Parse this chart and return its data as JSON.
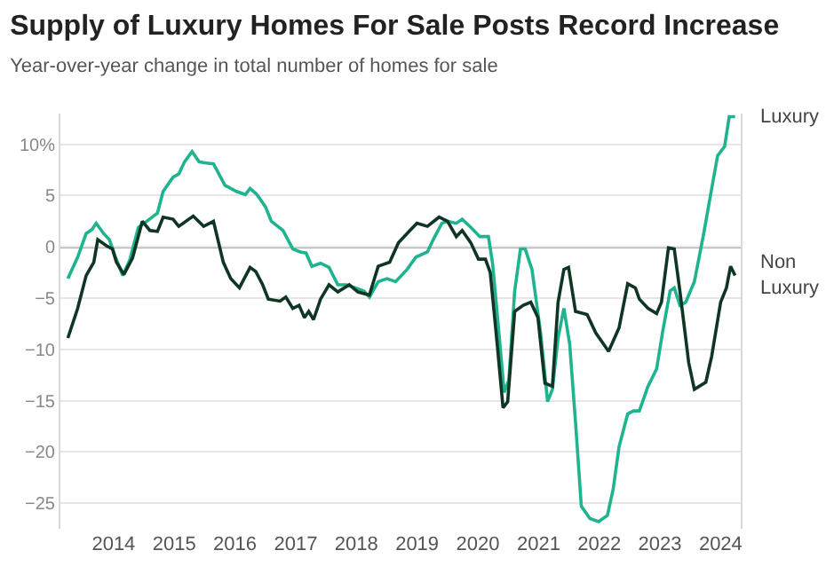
{
  "chart_data": {
    "type": "line",
    "title": "Supply of Luxury Homes For Sale Posts Record Increase",
    "subtitle": "Year-over-year change in total number of homes for sale",
    "xlim": [
      "2013-02-15",
      "2024-05-01"
    ],
    "xticks": [
      {
        "value": "2014-01-01",
        "label": "2014"
      },
      {
        "value": "2015-01-01",
        "label": "2015"
      },
      {
        "value": "2016-01-01",
        "label": "2016"
      },
      {
        "value": "2017-01-01",
        "label": "2017"
      },
      {
        "value": "2018-01-01",
        "label": "2018"
      },
      {
        "value": "2019-01-01",
        "label": "2019"
      },
      {
        "value": "2020-01-01",
        "label": "2020"
      },
      {
        "value": "2021-01-01",
        "label": "2021"
      },
      {
        "value": "2022-01-01",
        "label": "2022"
      },
      {
        "value": "2023-01-01",
        "label": "2023"
      },
      {
        "value": "2024-01-01",
        "label": "2024"
      }
    ],
    "ylim": [
      -27.5,
      13
    ],
    "yticks": [
      {
        "value": 10,
        "label": "10%"
      },
      5,
      0,
      {
        "value": -5,
        "label": "−5"
      },
      {
        "value": -10,
        "label": "−10"
      },
      {
        "value": -15,
        "label": "−15"
      },
      {
        "value": -20,
        "label": "−20"
      },
      {
        "value": -25,
        "label": "−25"
      }
    ],
    "grid": "y",
    "legend": false,
    "marker": "none",
    "line_style": "solid",
    "ref_lines": [
      {
        "axis": "y",
        "value": 0,
        "color": "#555555"
      }
    ],
    "series": [
      {
        "name": "Luxury",
        "color": "#1fb38f",
        "x": [
          "2013-04-01",
          "2013-05-30",
          "2013-07-20",
          "2013-08-25",
          "2013-09-18",
          "2013-11-02",
          "2013-12-07",
          "2014-01-10",
          "2014-02-25",
          "2014-04-08",
          "2014-05-30",
          "2014-07-20",
          "2014-09-22",
          "2014-10-26",
          "2014-12-25",
          "2015-01-28",
          "2015-03-04",
          "2015-04-18",
          "2015-05-30",
          "2015-07-03",
          "2015-08-25",
          "2015-11-02",
          "2016-01-10",
          "2016-03-04",
          "2016-04-01",
          "2016-05-12",
          "2016-07-03",
          "2016-08-07",
          "2016-10-16",
          "2016-12-14",
          "2017-01-28",
          "2017-03-04",
          "2017-04-08",
          "2017-05-30",
          "2017-07-20",
          "2017-09-11",
          "2017-11-02",
          "2017-12-25",
          "2018-02-15",
          "2018-03-20",
          "2018-05-12",
          "2018-07-03",
          "2018-08-25",
          "2018-11-02",
          "2018-12-25",
          "2019-03-04",
          "2019-04-08",
          "2019-05-30",
          "2019-07-03",
          "2019-08-25",
          "2019-09-29",
          "2019-11-20",
          "2020-01-13",
          "2020-03-05",
          "2020-03-30",
          "2020-05-04",
          "2020-06-08",
          "2020-07-06",
          "2020-08-10",
          "2020-09-14",
          "2020-10-12",
          "2020-11-22",
          "2021-01-13",
          "2021-02-24",
          "2021-03-25",
          "2021-04-28",
          "2021-06-02",
          "2021-07-07",
          "2021-08-11",
          "2021-09-15",
          "2021-11-06",
          "2021-12-28",
          "2022-02-19",
          "2022-03-26",
          "2022-04-30",
          "2022-06-21",
          "2022-07-26",
          "2022-08-30",
          "2022-10-21",
          "2022-12-12",
          "2023-01-16",
          "2023-03-03",
          "2023-03-28",
          "2023-05-01",
          "2023-06-05",
          "2023-07-27",
          "2023-09-18",
          "2023-11-02",
          "2023-12-14",
          "2024-01-25",
          "2024-02-22",
          "2024-03-28"
        ],
        "values": [
          -3.1,
          -1.0,
          1.3,
          1.7,
          2.3,
          1.3,
          0.7,
          -0.9,
          -2.8,
          -1.3,
          1.9,
          2.5,
          3.3,
          5.4,
          6.8,
          7.1,
          8.3,
          9.3,
          8.3,
          8.2,
          8.1,
          6.0,
          5.4,
          5.1,
          5.7,
          5.1,
          3.9,
          2.5,
          1.6,
          -0.2,
          -0.5,
          -0.6,
          -1.9,
          -1.6,
          -2.0,
          -3.7,
          -3.7,
          -4.0,
          -4.3,
          -4.9,
          -3.4,
          -3.1,
          -3.4,
          -2.2,
          -1.0,
          -0.5,
          0.7,
          2.3,
          2.5,
          2.3,
          2.7,
          1.9,
          1.0,
          1.0,
          -1.6,
          -7.8,
          -14.2,
          -13.0,
          -4.3,
          -0.2,
          -0.2,
          -2.2,
          -8.4,
          -15.1,
          -13.9,
          -8.9,
          -6.0,
          -9.5,
          -17.1,
          -25.3,
          -26.5,
          -26.8,
          -26.2,
          -23.6,
          -19.5,
          -16.3,
          -16.0,
          -16.0,
          -13.6,
          -11.9,
          -8.4,
          -4.3,
          -4.0,
          -5.7,
          -5.4,
          -3.4,
          1.0,
          5.1,
          8.9,
          9.8,
          12.7,
          12.7
        ]
      },
      {
        "name": "Non Luxury",
        "color": "#0f3524",
        "x": [
          "2013-04-01",
          "2013-05-30",
          "2013-07-20",
          "2013-09-04",
          "2013-09-28",
          "2013-11-19",
          "2013-12-25",
          "2014-01-18",
          "2014-03-04",
          "2014-04-25",
          "2014-06-23",
          "2014-08-07",
          "2014-09-22",
          "2014-10-26",
          "2014-12-25",
          "2015-01-28",
          "2015-04-25",
          "2015-06-27",
          "2015-08-25",
          "2015-10-23",
          "2015-12-07",
          "2016-01-28",
          "2016-04-01",
          "2016-05-05",
          "2016-06-16",
          "2016-07-20",
          "2016-09-28",
          "2016-11-02",
          "2016-12-14",
          "2017-01-21",
          "2017-02-22",
          "2017-03-20",
          "2017-04-18",
          "2017-05-30",
          "2017-07-20",
          "2017-09-11",
          "2017-11-19",
          "2018-01-10",
          "2018-03-20",
          "2018-05-12",
          "2018-07-20",
          "2018-09-11",
          "2018-11-19",
          "2018-12-31",
          "2019-03-04",
          "2019-05-13",
          "2019-07-03",
          "2019-08-25",
          "2019-09-29",
          "2019-11-20",
          "2020-01-05",
          "2020-02-16",
          "2020-03-16",
          "2020-04-27",
          "2020-06-01",
          "2020-06-29",
          "2020-08-10",
          "2020-10-01",
          "2020-11-15",
          "2020-12-28",
          "2021-02-08",
          "2021-03-25",
          "2021-04-28",
          "2021-06-02",
          "2021-06-30",
          "2021-08-11",
          "2021-10-20",
          "2021-12-11",
          "2022-02-26",
          "2022-04-30",
          "2022-06-21",
          "2022-08-06",
          "2022-08-30",
          "2022-10-21",
          "2022-12-12",
          "2023-01-10",
          "2023-02-21",
          "2023-03-28",
          "2023-05-01",
          "2023-06-23",
          "2023-07-27",
          "2023-10-04",
          "2023-11-08",
          "2024-01-01",
          "2024-02-05",
          "2024-03-01",
          "2024-03-28"
        ],
        "values": [
          -8.9,
          -6.0,
          -2.8,
          -1.5,
          0.7,
          0.1,
          -0.2,
          -1.5,
          -2.7,
          -1.1,
          2.5,
          1.6,
          1.5,
          2.9,
          2.7,
          2.0,
          3.0,
          2.0,
          2.5,
          -1.5,
          -3.1,
          -4.0,
          -2.0,
          -2.4,
          -3.7,
          -5.1,
          -5.3,
          -4.9,
          -6.0,
          -5.7,
          -6.9,
          -6.3,
          -7.1,
          -5.1,
          -3.7,
          -4.4,
          -3.7,
          -4.4,
          -4.7,
          -1.9,
          -1.5,
          0.4,
          1.6,
          2.3,
          2.0,
          2.9,
          2.5,
          1.0,
          1.6,
          0.4,
          -1.2,
          -1.2,
          -2.5,
          -9.5,
          -15.7,
          -15.1,
          -6.3,
          -5.7,
          -5.4,
          -6.9,
          -13.3,
          -13.6,
          -5.4,
          -2.2,
          -2.0,
          -6.3,
          -6.6,
          -8.4,
          -10.2,
          -7.9,
          -3.6,
          -4.0,
          -5.1,
          -6.0,
          -6.5,
          -5.4,
          -0.1,
          -0.2,
          -4.3,
          -11.3,
          -13.9,
          -13.2,
          -10.7,
          -5.4,
          -4.0,
          -1.9,
          -2.8
        ]
      }
    ]
  }
}
